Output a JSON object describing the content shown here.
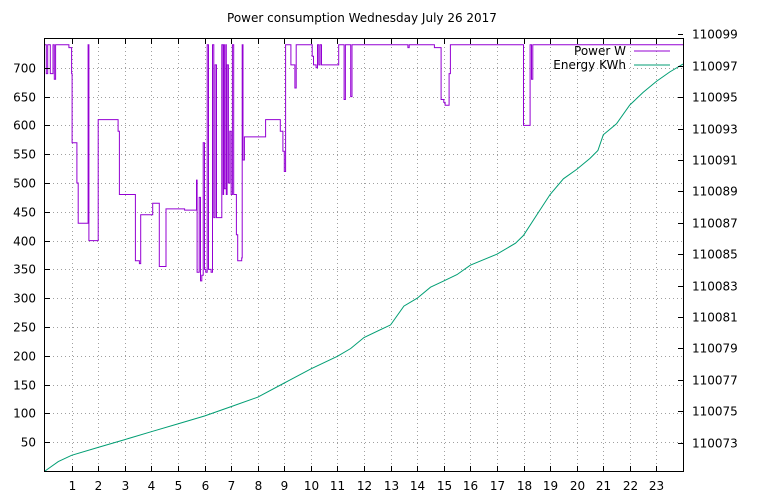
{
  "chart_data": {
    "type": "line",
    "title": "Power consumption Wednesday July 26 2017",
    "xlabel": "",
    "ylabel": "",
    "y2label": "",
    "x_ticks": [
      1,
      2,
      3,
      4,
      5,
      6,
      7,
      8,
      9,
      10,
      11,
      12,
      13,
      14,
      15,
      16,
      17,
      18,
      19,
      20,
      21,
      22,
      23
    ],
    "xlim": [
      0,
      24
    ],
    "ylim": [
      0,
      750
    ],
    "y_ticks": [
      50,
      100,
      150,
      200,
      250,
      300,
      350,
      400,
      450,
      500,
      550,
      600,
      650,
      700
    ],
    "y2lim": [
      110071.2,
      110098.7
    ],
    "y2_ticks": [
      110073,
      110075,
      110077,
      110079,
      110081,
      110083,
      110085,
      110087,
      110089,
      110091,
      110093,
      110095,
      110097,
      110099
    ],
    "grid": true,
    "legend_position": "top-right",
    "series": [
      {
        "name": "Power W",
        "axis": "left",
        "color": "#9400d3",
        "style": "steps",
        "points": [
          [
            0.0,
            740
          ],
          [
            0.05,
            690
          ],
          [
            0.1,
            740
          ],
          [
            0.2,
            690
          ],
          [
            0.3,
            740
          ],
          [
            0.35,
            680
          ],
          [
            0.4,
            740
          ],
          [
            0.85,
            740
          ],
          [
            0.9,
            735
          ],
          [
            1.0,
            690
          ],
          [
            1.02,
            570
          ],
          [
            1.15,
            570
          ],
          [
            1.2,
            500
          ],
          [
            1.25,
            430
          ],
          [
            1.6,
            430
          ],
          [
            1.62,
            740
          ],
          [
            1.65,
            400
          ],
          [
            1.95,
            400
          ],
          [
            2.0,
            610
          ],
          [
            2.7,
            610
          ],
          [
            2.75,
            590
          ],
          [
            2.8,
            480
          ],
          [
            3.0,
            480
          ],
          [
            3.35,
            480
          ],
          [
            3.4,
            365
          ],
          [
            3.55,
            360
          ],
          [
            3.6,
            445
          ],
          [
            4.0,
            445
          ],
          [
            4.05,
            465
          ],
          [
            4.25,
            465
          ],
          [
            4.3,
            355
          ],
          [
            4.5,
            355
          ],
          [
            4.55,
            455
          ],
          [
            5.2,
            455
          ],
          [
            5.25,
            453
          ],
          [
            5.65,
            453
          ],
          [
            5.7,
            505
          ],
          [
            5.72,
            345
          ],
          [
            5.8,
            475
          ],
          [
            5.85,
            330
          ],
          [
            5.9,
            340
          ],
          [
            5.95,
            570
          ],
          [
            6.0,
            350
          ],
          [
            6.05,
            345
          ],
          [
            6.1,
            740
          ],
          [
            6.15,
            350
          ],
          [
            6.25,
            345
          ],
          [
            6.3,
            740
          ],
          [
            6.35,
            440
          ],
          [
            6.4,
            705
          ],
          [
            6.45,
            440
          ],
          [
            6.65,
            740
          ],
          [
            6.7,
            480
          ],
          [
            6.72,
            740
          ],
          [
            6.75,
            490
          ],
          [
            6.8,
            740
          ],
          [
            6.82,
            480
          ],
          [
            6.85,
            705
          ],
          [
            6.9,
            500
          ],
          [
            6.95,
            590
          ],
          [
            7.0,
            480
          ],
          [
            7.05,
            740
          ],
          [
            7.1,
            480
          ],
          [
            7.2,
            410
          ],
          [
            7.25,
            365
          ],
          [
            7.4,
            370
          ],
          [
            7.42,
            740
          ],
          [
            7.45,
            540
          ],
          [
            7.5,
            580
          ],
          [
            8.0,
            580
          ],
          [
            8.25,
            580
          ],
          [
            8.3,
            610
          ],
          [
            8.8,
            610
          ],
          [
            8.85,
            590
          ],
          [
            8.95,
            555
          ],
          [
            9.0,
            520
          ],
          [
            9.05,
            740
          ],
          [
            9.2,
            740
          ],
          [
            9.25,
            705
          ],
          [
            9.35,
            705
          ],
          [
            9.4,
            665
          ],
          [
            9.45,
            740
          ],
          [
            10.0,
            740
          ],
          [
            10.05,
            720
          ],
          [
            10.1,
            705
          ],
          [
            10.2,
            700
          ],
          [
            10.25,
            740
          ],
          [
            10.3,
            705
          ],
          [
            10.35,
            740
          ],
          [
            10.4,
            705
          ],
          [
            11.0,
            705
          ],
          [
            11.05,
            740
          ],
          [
            11.2,
            740
          ],
          [
            11.25,
            645
          ],
          [
            11.3,
            740
          ],
          [
            11.45,
            740
          ],
          [
            11.5,
            650
          ],
          [
            11.55,
            740
          ],
          [
            13.6,
            740
          ],
          [
            13.65,
            735
          ],
          [
            13.7,
            740
          ],
          [
            14.6,
            740
          ],
          [
            14.65,
            735
          ],
          [
            14.85,
            735
          ],
          [
            14.9,
            645
          ],
          [
            15.0,
            640
          ],
          [
            15.05,
            635
          ],
          [
            15.15,
            635
          ],
          [
            15.2,
            690
          ],
          [
            15.25,
            740
          ],
          [
            17.95,
            740
          ],
          [
            18.0,
            600
          ],
          [
            18.2,
            600
          ],
          [
            18.25,
            740
          ],
          [
            18.3,
            680
          ],
          [
            18.35,
            740
          ],
          [
            24.0,
            740
          ]
        ]
      },
      {
        "name": "Energy KWh",
        "axis": "right",
        "color": "#009e73",
        "style": "line",
        "points": [
          [
            0.0,
            110071.2
          ],
          [
            0.5,
            110071.8
          ],
          [
            1.0,
            110072.2
          ],
          [
            2.0,
            110072.7
          ],
          [
            3.0,
            110073.2
          ],
          [
            4.0,
            110073.7
          ],
          [
            5.0,
            110074.2
          ],
          [
            6.0,
            110074.7
          ],
          [
            7.0,
            110075.3
          ],
          [
            8.0,
            110075.9
          ],
          [
            9.0,
            110076.8
          ],
          [
            10.0,
            110077.7
          ],
          [
            11.0,
            110078.5
          ],
          [
            11.5,
            110079.0
          ],
          [
            12.0,
            110079.7
          ],
          [
            13.0,
            110080.5
          ],
          [
            13.5,
            110081.7
          ],
          [
            14.0,
            110082.2
          ],
          [
            14.5,
            110082.9
          ],
          [
            15.0,
            110083.3
          ],
          [
            15.5,
            110083.7
          ],
          [
            16.0,
            110084.3
          ],
          [
            17.0,
            110085.0
          ],
          [
            17.7,
            110085.7
          ],
          [
            18.0,
            110086.2
          ],
          [
            18.5,
            110087.5
          ],
          [
            19.0,
            110088.8
          ],
          [
            19.5,
            110089.8
          ],
          [
            20.0,
            110090.4
          ],
          [
            20.5,
            110091.1
          ],
          [
            20.8,
            110091.6
          ],
          [
            21.0,
            110092.6
          ],
          [
            21.5,
            110093.3
          ],
          [
            22.0,
            110094.5
          ],
          [
            22.5,
            110095.3
          ],
          [
            23.0,
            110096.0
          ],
          [
            23.5,
            110096.6
          ],
          [
            24.0,
            110097.1
          ]
        ]
      }
    ]
  }
}
